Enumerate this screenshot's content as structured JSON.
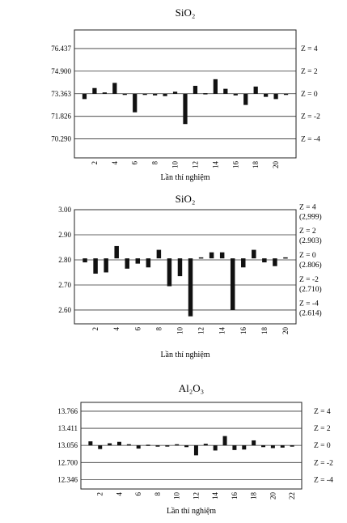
{
  "chart_data": [
    {
      "type": "bar",
      "title": "SiO₂",
      "xlabel": "Lần thí nghiệm",
      "center": 73.363,
      "ylim": [
        69.0,
        77.7
      ],
      "yticks": [
        "76.437",
        "74.900",
        "73.363",
        "71.826",
        "70.290"
      ],
      "ytick_values": [
        76.437,
        74.9,
        73.363,
        71.826,
        70.29
      ],
      "zlines": [
        {
          "value": 76.437,
          "label": "Z = 4",
          "sub": ""
        },
        {
          "value": 74.9,
          "label": "Z = 2",
          "sub": ""
        },
        {
          "value": 73.363,
          "label": "Z = 0",
          "sub": ""
        },
        {
          "value": 71.826,
          "label": "Z = -2",
          "sub": ""
        },
        {
          "value": 70.29,
          "label": "Z = -4",
          "sub": ""
        }
      ],
      "xticks": [
        "2",
        "4",
        "6",
        "8",
        "10",
        "12",
        "14",
        "16",
        "18",
        "20"
      ],
      "x": [
        1,
        2,
        3,
        4,
        5,
        6,
        7,
        8,
        9,
        10,
        11,
        12,
        13,
        14,
        15,
        16,
        17,
        18,
        19,
        20,
        21
      ],
      "values": [
        73.0,
        73.75,
        73.45,
        74.1,
        73.35,
        72.1,
        73.3,
        73.25,
        73.2,
        73.5,
        71.3,
        73.9,
        73.4,
        74.35,
        73.7,
        73.25,
        72.6,
        73.85,
        73.15,
        73.0,
        73.35
      ]
    },
    {
      "type": "bar",
      "title": "SiO₂",
      "xlabel": "Lần thí nghiệm",
      "center": 2.806,
      "ylim": [
        2.545,
        3.0
      ],
      "yticks": [
        "3.00",
        "2.90",
        "2.80",
        "2.70",
        "2.60"
      ],
      "ytick_values": [
        3.0,
        2.9,
        2.8,
        2.7,
        2.6
      ],
      "zlines": [
        {
          "value": 2.999,
          "label": "Z = 4",
          "sub": "(2,999)"
        },
        {
          "value": 2.903,
          "label": "Z = 2",
          "sub": "(2.903)"
        },
        {
          "value": 2.806,
          "label": "Z = 0",
          "sub": "(2.806)"
        },
        {
          "value": 2.71,
          "label": "Z = -2",
          "sub": "(2.710)"
        },
        {
          "value": 2.614,
          "label": "Z = -4",
          "sub": "(2.614)"
        }
      ],
      "xticks": [
        "2",
        "4",
        "6",
        "8",
        "10",
        "12",
        "14",
        "16",
        "18",
        "20"
      ],
      "x": [
        1,
        2,
        3,
        4,
        5,
        6,
        7,
        8,
        9,
        10,
        11,
        12,
        13,
        14,
        15,
        16,
        17,
        18,
        19,
        20
      ],
      "values": [
        2.79,
        2.745,
        2.75,
        2.855,
        2.765,
        2.785,
        2.77,
        2.84,
        2.695,
        2.735,
        2.575,
        2.81,
        2.83,
        2.83,
        2.6,
        2.77,
        2.84,
        2.79,
        2.775,
        2.81
      ]
    },
    {
      "type": "bar",
      "title": "Al₂O₃",
      "xlabel": "Lần thí nghiệm",
      "center": 13.056,
      "ylim": [
        12.15,
        13.95
      ],
      "yticks": [
        "13.766",
        "13.411",
        "13.056",
        "12.700",
        "12.346"
      ],
      "ytick_values": [
        13.766,
        13.411,
        13.056,
        12.7,
        12.346
      ],
      "zlines": [
        {
          "value": 13.766,
          "label": "Z = 4",
          "sub": ""
        },
        {
          "value": 13.411,
          "label": "Z = 2",
          "sub": ""
        },
        {
          "value": 13.056,
          "label": "Z = 0",
          "sub": ""
        },
        {
          "value": 12.7,
          "label": "Z = -2",
          "sub": ""
        },
        {
          "value": 12.346,
          "label": "Z = -4",
          "sub": ""
        }
      ],
      "xticks": [
        "2",
        "4",
        "6",
        "8",
        "10",
        "12",
        "14",
        "16",
        "18",
        "20",
        "22"
      ],
      "x": [
        1,
        2,
        3,
        4,
        5,
        6,
        7,
        8,
        9,
        10,
        11,
        12,
        13,
        14,
        15,
        16,
        17,
        18,
        19,
        20,
        21,
        22
      ],
      "values": [
        13.14,
        12.98,
        13.1,
        13.13,
        13.08,
        12.99,
        13.07,
        13.03,
        13.04,
        13.08,
        13.02,
        12.85,
        13.09,
        12.95,
        13.25,
        12.96,
        12.97,
        13.16,
        13.02,
        13.0,
        13.01,
        13.03
      ]
    }
  ]
}
